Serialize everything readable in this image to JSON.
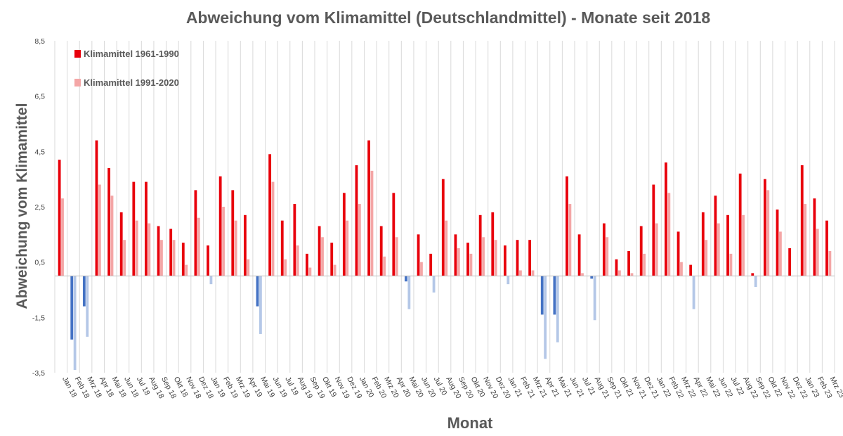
{
  "chart_data": {
    "type": "bar",
    "title": "Abweichung vom Klimamittel (Deutschlandmittel) - Monate seit 2018",
    "xlabel": "Monat",
    "ylabel": "Abweichung vom Klimamittel",
    "ylim": [
      -3.5,
      8.5
    ],
    "yticks": [
      "8,5",
      "6,5",
      "4,5",
      "2,5",
      "0,5",
      "-1,5",
      "-3,5"
    ],
    "ytick_values": [
      8.5,
      6.5,
      4.5,
      2.5,
      0.5,
      -1.5,
      -3.5
    ],
    "grid": "vertical",
    "legend_position": "top-left",
    "colors": {
      "series1_pos": "#e8000b",
      "series1_neg": "#4472c4",
      "series2_pos": "#f4a6a6",
      "series2_neg": "#b4c7e7"
    },
    "categories": [
      "Jan 18",
      "Feb 18",
      "Mrz 18",
      "Apr 18",
      "Mai 18",
      "Jun 18",
      "Jul 18",
      "Aug 18",
      "Sep 18",
      "Okt 18",
      "Nov 18",
      "Dez 18",
      "Jan 19",
      "Feb 19",
      "Mrz 19",
      "Apr 19",
      "Mai 19",
      "Jun 19",
      "Jul 19",
      "Aug 19",
      "Sep 19",
      "Okt 19",
      "Nov 19",
      "Dez 19",
      "Jan 20",
      "Feb 20",
      "Mrz 20",
      "Apr 20",
      "Mai 20",
      "Jun 20",
      "Jul 20",
      "Aug 20",
      "Sep 20",
      "Okt 20",
      "Nov 20",
      "Dez 20",
      "Jan 21",
      "Feb 21",
      "Mrz 21",
      "Apr 21",
      "Mai 21",
      "Jun 21",
      "Jul 21",
      "Aug 21",
      "Sep 21",
      "Okt 21",
      "Nov 21",
      "Dez 21",
      "Jan 22",
      "Feb 22",
      "Mrz 22",
      "Apr 22",
      "Mai 22",
      "Jun 22",
      "Jul 22",
      "Aug 22",
      "Sep 22",
      "Okt 22",
      "Nov 22",
      "Dez 22",
      "Jan 23",
      "Feb 23",
      "Mrz 23"
    ],
    "series": [
      {
        "name": "Klimamittel 1961-1990",
        "values": [
          4.2,
          -2.3,
          -1.1,
          4.9,
          3.9,
          2.3,
          3.4,
          3.4,
          1.8,
          1.7,
          1.2,
          3.1,
          1.1,
          3.6,
          3.1,
          2.2,
          -1.1,
          4.4,
          2.0,
          2.6,
          0.8,
          1.8,
          1.2,
          3.0,
          4.0,
          4.9,
          1.8,
          3.0,
          -0.2,
          1.5,
          0.8,
          3.5,
          1.5,
          1.2,
          2.2,
          2.3,
          1.1,
          1.3,
          1.3,
          -1.4,
          -1.4,
          3.6,
          1.5,
          -0.1,
          1.9,
          0.6,
          0.9,
          1.8,
          3.3,
          4.1,
          1.6,
          0.4,
          2.3,
          2.9,
          2.2,
          3.7,
          0.1,
          3.5,
          2.4,
          1.0,
          4.0,
          2.8,
          2.0
        ]
      },
      {
        "name": "Klimamittel 1991-2020",
        "values": [
          2.8,
          -3.4,
          -2.2,
          3.3,
          2.9,
          1.3,
          2.0,
          1.9,
          1.3,
          1.3,
          0.4,
          2.1,
          -0.3,
          2.5,
          2.0,
          0.6,
          -2.1,
          3.4,
          0.6,
          1.1,
          0.3,
          1.4,
          0.4,
          2.0,
          2.6,
          3.8,
          0.7,
          1.4,
          -1.2,
          0.5,
          -0.6,
          2.0,
          1.0,
          0.8,
          1.4,
          1.3,
          -0.3,
          0.2,
          0.2,
          -3.0,
          -2.4,
          2.6,
          0.1,
          -1.6,
          1.4,
          0.2,
          0.1,
          0.8,
          1.9,
          3.0,
          0.5,
          -1.2,
          1.3,
          1.9,
          0.8,
          2.2,
          -0.4,
          3.1,
          1.6,
          0.0,
          2.6,
          1.7,
          0.9
        ]
      }
    ]
  }
}
